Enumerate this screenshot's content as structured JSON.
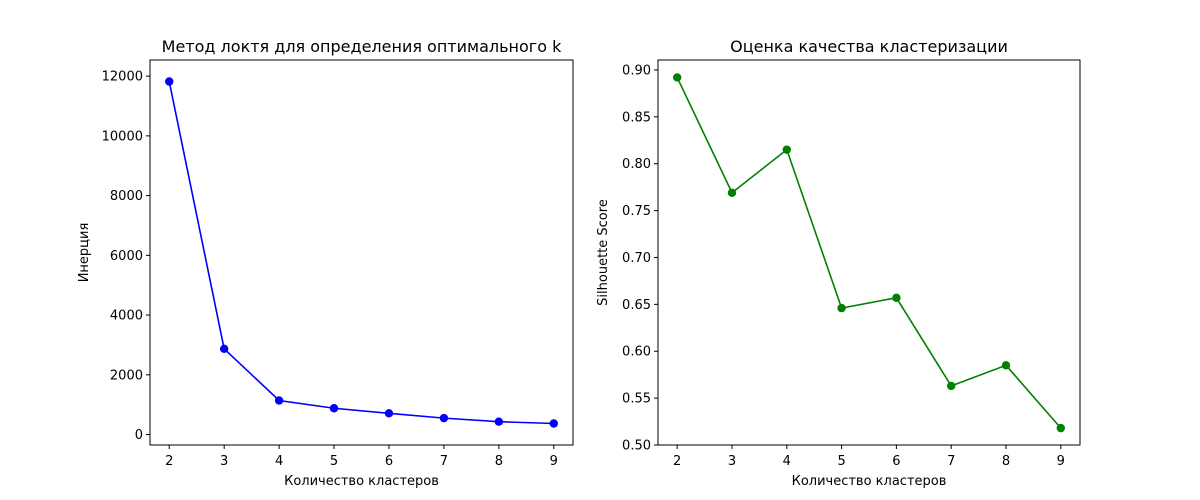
{
  "chart_data": [
    {
      "type": "line",
      "title": "Метод локтя для определения оптимального k",
      "xlabel": "Количество кластеров",
      "ylabel": "Инерция",
      "x": [
        2,
        3,
        4,
        5,
        6,
        7,
        8,
        9
      ],
      "series": [
        {
          "values": [
            11820,
            2870,
            1140,
            880,
            710,
            550,
            430,
            370
          ],
          "color": "#0000ff"
        }
      ],
      "xticks": [
        2,
        3,
        4,
        5,
        6,
        7,
        8,
        9
      ],
      "xtick_labels": [
        "2",
        "3",
        "4",
        "5",
        "6",
        "7",
        "8",
        "9"
      ],
      "xlim": [
        1.65,
        9.35
      ],
      "yticks": [
        0,
        2000,
        4000,
        6000,
        8000,
        10000,
        12000
      ],
      "ytick_labels": [
        "0",
        "2000",
        "4000",
        "6000",
        "8000",
        "10000",
        "12000"
      ],
      "ylim": [
        -350,
        12540
      ],
      "grid": false
    },
    {
      "type": "line",
      "title": "Оценка качества кластеризации",
      "xlabel": "Количество кластеров",
      "ylabel": "Silhouette Score",
      "x": [
        2,
        3,
        4,
        5,
        6,
        7,
        8,
        9
      ],
      "series": [
        {
          "values": [
            0.892,
            0.769,
            0.815,
            0.646,
            0.657,
            0.563,
            0.585,
            0.518
          ],
          "color": "#008000"
        }
      ],
      "xticks": [
        2,
        3,
        4,
        5,
        6,
        7,
        8,
        9
      ],
      "xtick_labels": [
        "2",
        "3",
        "4",
        "5",
        "6",
        "7",
        "8",
        "9"
      ],
      "xlim": [
        1.65,
        9.35
      ],
      "yticks": [
        0.5,
        0.55,
        0.6,
        0.65,
        0.7,
        0.75,
        0.8,
        0.85,
        0.9
      ],
      "ytick_labels": [
        "0.50",
        "0.55",
        "0.60",
        "0.65",
        "0.70",
        "0.75",
        "0.80",
        "0.85",
        "0.90"
      ],
      "ylim": [
        0.5,
        0.9106
      ],
      "grid": false
    }
  ]
}
